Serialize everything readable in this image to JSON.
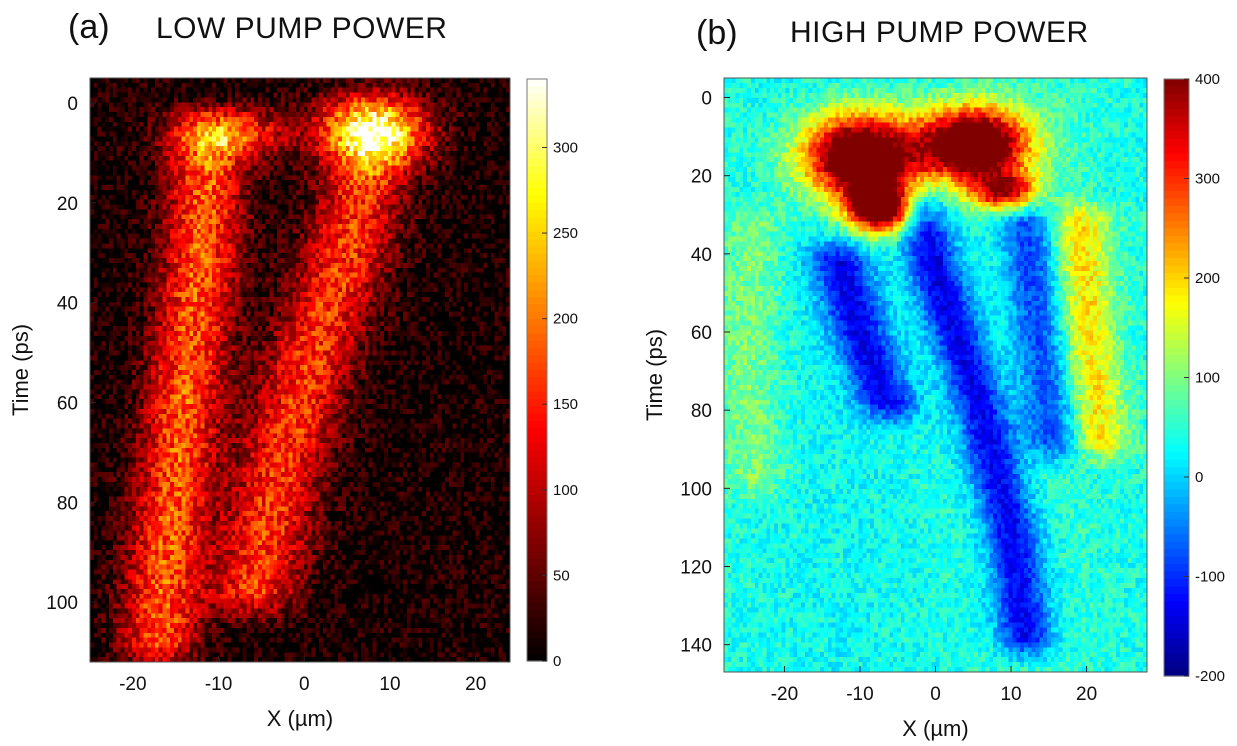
{
  "chart_data": [
    {
      "type": "heatmap",
      "panel_label": "(a)",
      "title": "LOW PUMP POWER",
      "xlabel": "X (µm)",
      "ylabel": "Time (ps)",
      "xlim": [
        -25,
        24
      ],
      "ylim": [
        -5,
        112
      ],
      "y_reversed": true,
      "x_ticks": [
        -20,
        -10,
        0,
        10,
        20
      ],
      "y_ticks": [
        0,
        20,
        40,
        60,
        80,
        100
      ],
      "colormap": "hot",
      "colorbar": {
        "min": 0,
        "max": 340,
        "ticks": [
          0,
          50,
          100,
          150,
          200,
          250,
          300
        ]
      },
      "features": [
        {
          "description_value": "bright emission spot",
          "x": 8,
          "y": 5,
          "value": 330
        },
        {
          "description_value": "left branch",
          "points": [
            [
              -11,
              5
            ],
            [
              -12,
              30
            ],
            [
              -14,
              60
            ],
            [
              -16,
              90
            ],
            [
              -17,
              110
            ]
          ],
          "value": 170
        },
        {
          "description_value": "right branch",
          "points": [
            [
              8,
              10
            ],
            [
              5,
              30
            ],
            [
              1,
              50
            ],
            [
              -3,
              75
            ],
            [
              -6,
              100
            ]
          ],
          "value": 150
        }
      ]
    },
    {
      "type": "heatmap",
      "panel_label": "(b)",
      "title": "HIGH PUMP POWER",
      "xlabel": "X (µm)",
      "ylabel": "Time (ps)",
      "xlim": [
        -28,
        28
      ],
      "ylim": [
        -5,
        147
      ],
      "y_reversed": true,
      "x_ticks": [
        -20,
        -10,
        0,
        10,
        20
      ],
      "y_ticks": [
        0,
        20,
        40,
        60,
        80,
        100,
        120,
        140
      ],
      "colormap": "jet",
      "colorbar": {
        "min": -200,
        "max": 400,
        "ticks": [
          -200,
          -100,
          0,
          100,
          200,
          300,
          400
        ]
      },
      "features": [
        {
          "description_value": "saturated lobe left",
          "x": -10,
          "y": 15,
          "value": 400
        },
        {
          "description_value": "saturated lobe right",
          "x": 5,
          "y": 12,
          "value": 400
        },
        {
          "description_value": "negative band 1",
          "points": [
            [
              -13,
              40
            ],
            [
              -10,
              60
            ],
            [
              -6,
              80
            ]
          ],
          "value": -170
        },
        {
          "description_value": "negative band 2",
          "points": [
            [
              -3,
              25
            ],
            [
              1,
              50
            ],
            [
              6,
              80
            ],
            [
              10,
              110
            ],
            [
              12,
              140
            ]
          ],
          "value": -180
        },
        {
          "description_value": "negative band 3",
          "points": [
            [
              12,
              30
            ],
            [
              14,
              60
            ],
            [
              16,
              90
            ]
          ],
          "value": -140
        },
        {
          "description_value": "positive band",
          "points": [
            [
              19,
              30
            ],
            [
              20,
              60
            ],
            [
              22,
              90
            ]
          ],
          "value": 150
        }
      ]
    }
  ]
}
